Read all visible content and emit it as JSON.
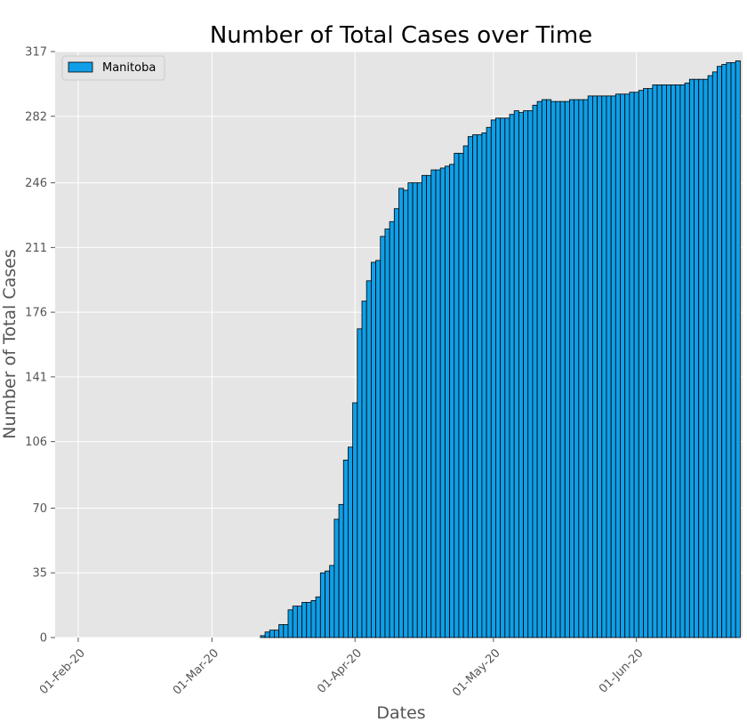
{
  "chart_data": {
    "type": "bar",
    "title": "Number of Total Cases over Time",
    "xlabel": "Dates",
    "ylabel": "Number of Total Cases",
    "x_ticks": [
      "01-Feb-20",
      "01-Mar-20",
      "01-Apr-20",
      "01-May-20",
      "01-Jun-20"
    ],
    "y_ticks": [
      "0",
      "35",
      "70",
      "106",
      "141",
      "176",
      "211",
      "246",
      "282",
      "317"
    ],
    "ylim": [
      0,
      317
    ],
    "xlim": [
      "2020-01-27",
      "2020-06-24"
    ],
    "grid": true,
    "legend_position": "top-left",
    "series": [
      {
        "name": "Manitoba",
        "color": "#0f9fe8",
        "start_date": "2020-03-12",
        "values": [
          1,
          3,
          4,
          4,
          7,
          7,
          15,
          17,
          17,
          19,
          19,
          20,
          22,
          35,
          36,
          39,
          64,
          72,
          96,
          103,
          127,
          167,
          182,
          193,
          203,
          204,
          217,
          221,
          225,
          232,
          243,
          242,
          246,
          246,
          246,
          250,
          250,
          253,
          253,
          254,
          255,
          256,
          262,
          262,
          266,
          271,
          272,
          272,
          273,
          276,
          280,
          281,
          281,
          281,
          283,
          285,
          284,
          285,
          285,
          288,
          290,
          291,
          291,
          290,
          290,
          290,
          290,
          291,
          291,
          291,
          291,
          293,
          293,
          293,
          293,
          293,
          293,
          294,
          294,
          294,
          295,
          295,
          296,
          297,
          297,
          299,
          299,
          299,
          299,
          299,
          299,
          299,
          300,
          302,
          302,
          302,
          302,
          304,
          306,
          309,
          310,
          311,
          311,
          312
        ]
      }
    ]
  }
}
